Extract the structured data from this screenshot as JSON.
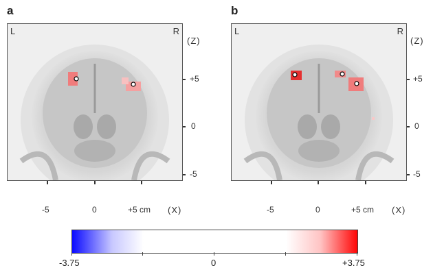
{
  "panels": [
    {
      "letter": "a",
      "left_label": "L",
      "right_label": "R",
      "z_label": "(Z)",
      "x_label": "(X)",
      "z_ticks": [
        "+5",
        "0",
        "-5"
      ],
      "x_ticks": [
        "-5",
        "0",
        "+5 cm"
      ]
    },
    {
      "letter": "b",
      "left_label": "L",
      "right_label": "R",
      "z_label": "(Z)",
      "x_label": "(X)",
      "z_ticks": [
        "+5",
        "0",
        "-5"
      ],
      "x_ticks": [
        "-5",
        "0",
        "+5 cm"
      ]
    }
  ],
  "colorbar": {
    "min_label": "-3.75",
    "mid_label": "0",
    "max_label": "+3.75",
    "colors": {
      "negative": "#0000ff",
      "neutral": "#ffffff",
      "positive": "#ff0000"
    }
  }
}
